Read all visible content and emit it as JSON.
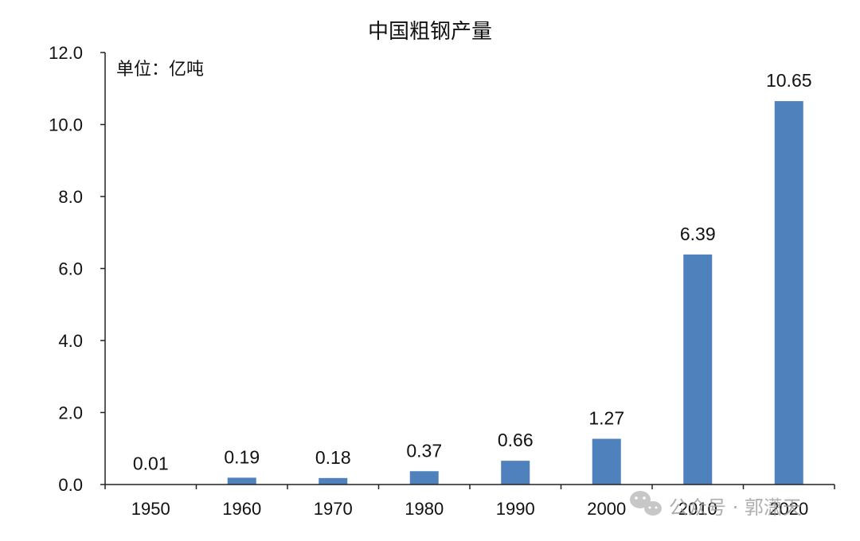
{
  "chart_data": {
    "type": "bar",
    "title": "中国粗钢产量",
    "unit_label": "单位：亿吨",
    "categories": [
      "1950",
      "1960",
      "1970",
      "1980",
      "1990",
      "2000",
      "2010",
      "2020"
    ],
    "values": [
      0.01,
      0.19,
      0.18,
      0.37,
      0.66,
      1.27,
      6.39,
      10.65
    ],
    "value_labels": [
      "0.01",
      "0.19",
      "0.18",
      "0.37",
      "0.66",
      "1.27",
      "6.39",
      "10.65"
    ],
    "ylim": [
      0,
      12
    ],
    "y_ticks": [
      "0.0",
      "2.0",
      "4.0",
      "6.0",
      "8.0",
      "10.0",
      "12.0"
    ],
    "xlabel": "",
    "ylabel": "",
    "grid": false,
    "legend": "none",
    "bar_color": "#4f81bd"
  },
  "watermark": {
    "text": "公众号 · 郭潇天",
    "icon": "wechat-icon"
  }
}
